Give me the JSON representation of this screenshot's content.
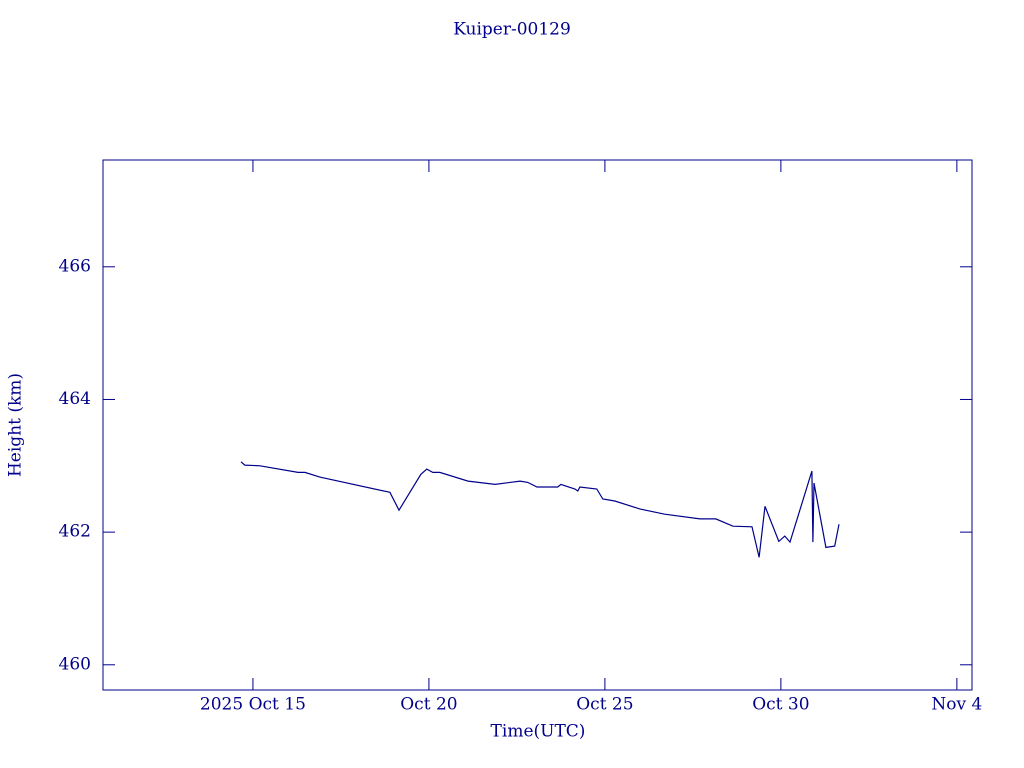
{
  "chart_data": {
    "type": "line",
    "title": "Kuiper-00129",
    "x_label": "Time(UTC)",
    "y_label": "Height (km)",
    "color": "#00008b",
    "xlim": [
      10.74,
      35.43
    ],
    "xticks": [
      {
        "value": 15,
        "label": "2025 Oct 15"
      },
      {
        "value": 20,
        "label": "Oct 20"
      },
      {
        "value": 25,
        "label": "Oct 25"
      },
      {
        "value": 30,
        "label": "Oct 30"
      },
      {
        "value": 35,
        "label": "Nov  4"
      }
    ],
    "ylim": [
      459.62,
      467.61
    ],
    "yticks": [
      460,
      462,
      464,
      466
    ],
    "series": [
      {
        "name": "Height",
        "color": "#00008b",
        "x": [
          14.66,
          14.77,
          15.2,
          16.28,
          16.48,
          16.9,
          18.89,
          19.15,
          19.77,
          19.94,
          20.11,
          20.31,
          21.11,
          21.88,
          22.59,
          22.81,
          23.07,
          23.66,
          23.75,
          24.15,
          24.23,
          24.29,
          24.77,
          24.94,
          25.28,
          25.99,
          26.7,
          27.7,
          28.15,
          28.64,
          29.18,
          29.38,
          29.55,
          29.94,
          30.11,
          30.26,
          30.88,
          30.91,
          30.94,
          31.28,
          31.53,
          31.65
        ],
        "values": [
          463.06,
          463.01,
          463.0,
          462.9,
          462.9,
          462.83,
          462.6,
          462.33,
          462.87,
          462.95,
          462.9,
          462.9,
          462.77,
          462.72,
          462.77,
          462.75,
          462.68,
          462.68,
          462.72,
          462.65,
          462.62,
          462.68,
          462.65,
          462.5,
          462.47,
          462.35,
          462.27,
          462.2,
          462.2,
          462.09,
          462.08,
          461.62,
          462.39,
          461.86,
          461.94,
          461.85,
          462.92,
          461.85,
          462.74,
          461.77,
          461.79,
          462.12
        ]
      }
    ]
  }
}
